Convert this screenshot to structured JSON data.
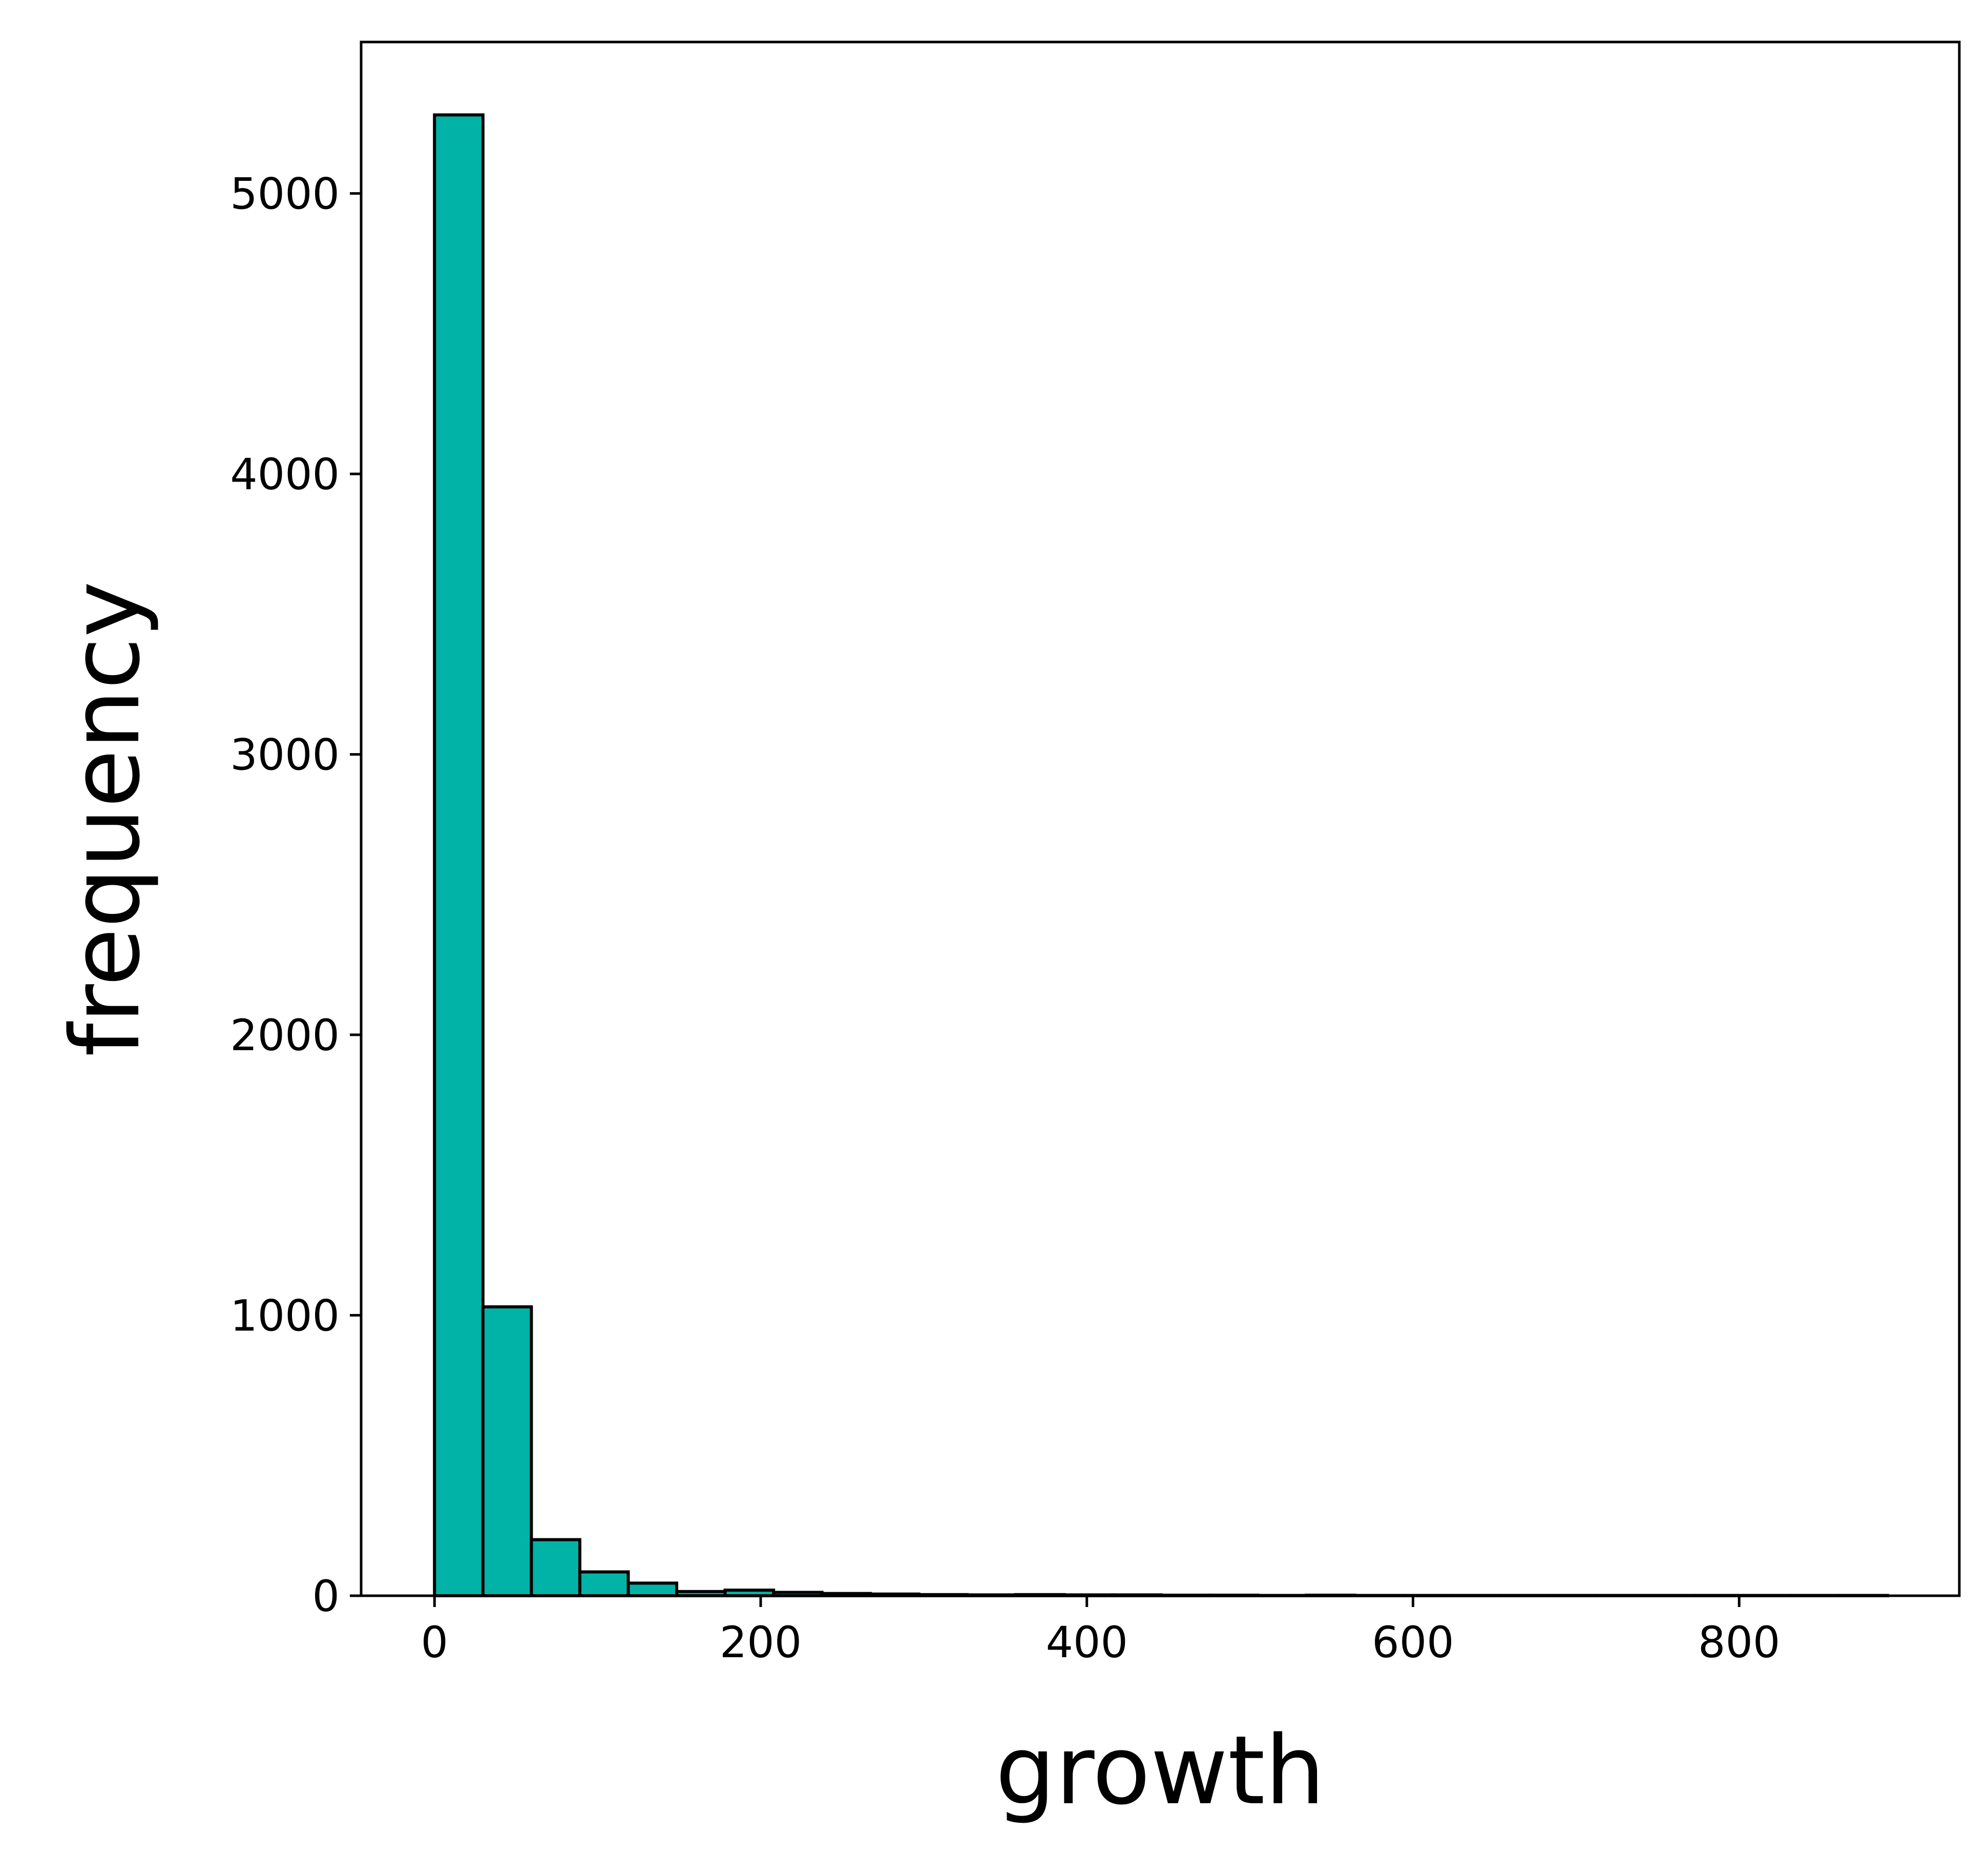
{
  "chart_data": {
    "type": "bar",
    "xlabel": "growth",
    "ylabel": "frequency",
    "xlim": [
      -45,
      935
    ],
    "ylim": [
      0,
      5540
    ],
    "x_ticks": [
      0,
      200,
      400,
      600,
      800
    ],
    "y_ticks": [
      0,
      1000,
      2000,
      3000,
      4000,
      5000
    ],
    "bin_width": 29.7,
    "bin_edges_start": 0,
    "counts": [
      5280,
      1030,
      200,
      85,
      45,
      15,
      20,
      12,
      8,
      6,
      4,
      3,
      4,
      3,
      3,
      2,
      2,
      1,
      2,
      1,
      1,
      1,
      1,
      1,
      1,
      1,
      1,
      1,
      1,
      1
    ],
    "bar_color": "#00b3a6",
    "edge_color": "#000000",
    "grid": false
  }
}
